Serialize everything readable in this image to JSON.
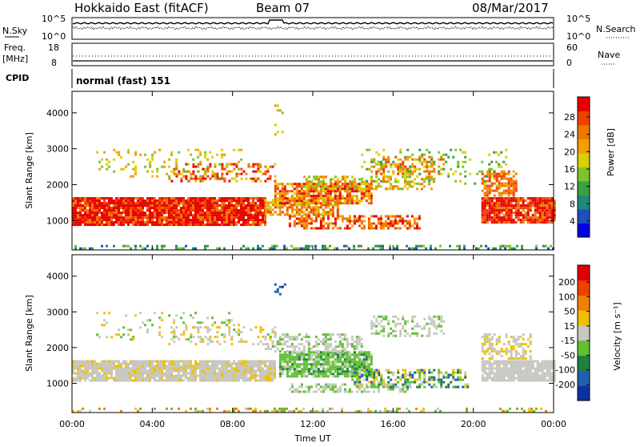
{
  "header": {
    "station": "Hokkaido East (fitACF)",
    "beam": "Beam 07",
    "date": "08/Mar/2017"
  },
  "top_panels": {
    "noise": {
      "left_label": "N.Sky",
      "right_label": "N.Search",
      "left_ticks": [
        "10^5",
        "10^0"
      ],
      "right_ticks": [
        "10^5",
        "10^0"
      ]
    },
    "freq": {
      "left_label_1": "Freq.",
      "left_label_2": "[MHz]",
      "left_ticks": [
        "18",
        "8"
      ],
      "right_label": "Nave",
      "right_ticks": [
        "60",
        "0"
      ]
    },
    "cpid": {
      "label": "CPID",
      "value": "normal (fast) 151"
    }
  },
  "chart_data": [
    {
      "type": "heatmap",
      "name": "power",
      "ylabel": "Slant Range [km]",
      "ylim": [
        180,
        4600
      ],
      "yticks": [
        "1000",
        "2000",
        "3000",
        "4000"
      ],
      "colorbar": {
        "label": "Power [dB]",
        "ticks": [
          "4",
          "8",
          "12",
          "16",
          "20",
          "24",
          "28"
        ],
        "colors": [
          "#0000e8",
          "#2050c0",
          "#1f8a7a",
          "#3aa040",
          "#7cc42a",
          "#d8d000",
          "#f0a000",
          "#f07800",
          "#f04000",
          "#e80000"
        ]
      }
    },
    {
      "type": "heatmap",
      "name": "velocity",
      "ylabel": "Slant Range [km]",
      "ylim": [
        180,
        4600
      ],
      "yticks": [
        "1000",
        "2000",
        "3000",
        "4000"
      ],
      "xlabel": "Time UT",
      "xticks": [
        "00:00",
        "04:00",
        "08:00",
        "12:00",
        "16:00",
        "20:00",
        "00:00"
      ],
      "colorbar": {
        "label": "Velocity [m s⁻¹]",
        "ticks": [
          "200",
          "100",
          "50",
          "15",
          "-15",
          "-50",
          "-100",
          "-200"
        ],
        "colors": [
          "#1030a0",
          "#2060b0",
          "#208040",
          "#60c030",
          "#c8c8c0",
          "#f0c000",
          "#f08000",
          "#f04000",
          "#e00000"
        ]
      }
    }
  ]
}
